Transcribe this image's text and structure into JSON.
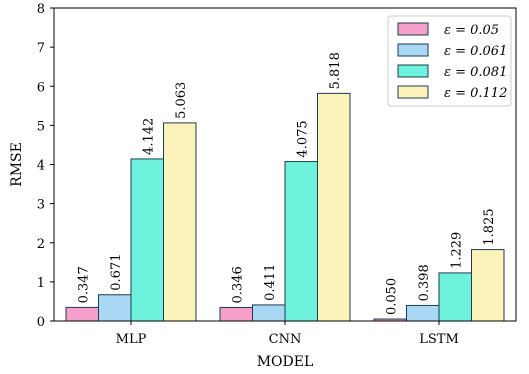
{
  "chart_data": {
    "type": "bar",
    "title": "",
    "xlabel": "MODEL",
    "ylabel": "RMSE",
    "categories": [
      "MLP",
      "CNN",
      "LSTM"
    ],
    "ylim": [
      0,
      8
    ],
    "yticks": [
      0,
      1,
      2,
      3,
      4,
      5,
      6,
      7,
      8
    ],
    "legend_position": "top-right",
    "series": [
      {
        "name": "ε = 0.05",
        "color": "#f79fcb",
        "values": [
          0.347,
          0.346,
          0.05
        ],
        "labels": [
          "0.347",
          "0.346",
          "0.050"
        ]
      },
      {
        "name": "ε = 0.061",
        "color": "#a9d8f5",
        "values": [
          0.671,
          0.411,
          0.398
        ],
        "labels": [
          "0.671",
          "0.411",
          "0.398"
        ]
      },
      {
        "name": "ε = 0.081",
        "color": "#6ff2dd",
        "values": [
          4.142,
          4.075,
          1.229
        ],
        "labels": [
          "4.142",
          "4.075",
          "1.229"
        ]
      },
      {
        "name": "ε = 0.112",
        "color": "#fbf3b9",
        "values": [
          5.063,
          5.818,
          1.825
        ],
        "labels": [
          "5.063",
          "5.818",
          "1.825"
        ]
      }
    ]
  }
}
